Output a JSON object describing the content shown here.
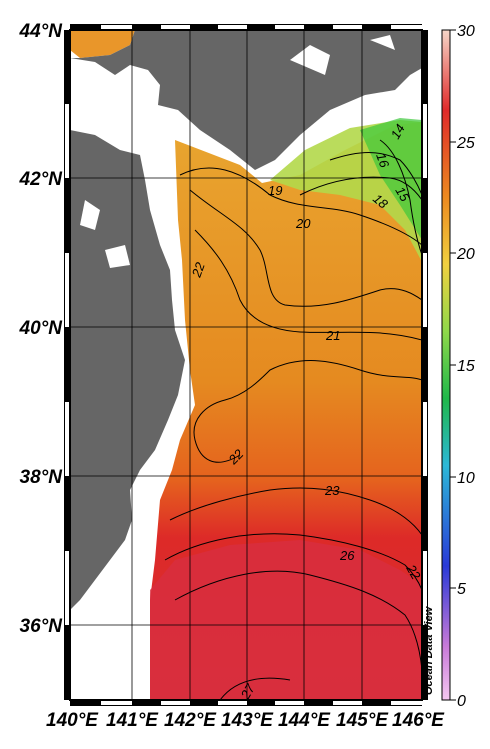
{
  "map": {
    "lat_labels": [
      "44°N",
      "42°N",
      "40°N",
      "38°N",
      "36°N"
    ],
    "lon_labels": [
      "140°E",
      "141°E",
      "142°E",
      "143°E",
      "144°E",
      "145°E",
      "146°E"
    ],
    "contour_labels": [
      "19",
      "20",
      "21",
      "22",
      "22",
      "23",
      "26",
      "27",
      "14",
      "15",
      "16",
      "18",
      "22"
    ],
    "watermark": "Ocean Data View",
    "colorbar": {
      "ticks": [
        "30",
        "25",
        "20",
        "15",
        "10",
        "5",
        "0"
      ],
      "min": 0,
      "max": 30
    },
    "colors": {
      "land": "#666666",
      "ocean_warm": "#d93030",
      "ocean_mid": "#e8901e",
      "ocean_cool": "#9fdc4a"
    }
  }
}
